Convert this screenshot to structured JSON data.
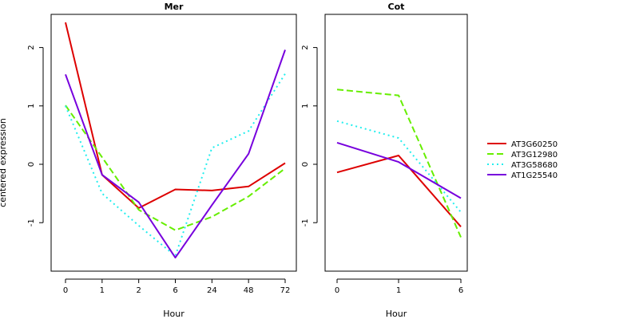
{
  "chart_data": {
    "type": "line",
    "ylabel": "centered expression",
    "ylim": [
      -1.75,
      2.5
    ],
    "yticks": [
      -1,
      0,
      1,
      2
    ],
    "grid": false,
    "legend_position": "right",
    "panels": [
      {
        "title": "Mer",
        "xlabel": "Hour",
        "categories": [
          "0",
          "1",
          "2",
          "6",
          "24",
          "48",
          "72"
        ],
        "series": [
          {
            "name": "AT3G60250",
            "color": "#dd0000",
            "dash": "solid",
            "values": [
              2.43,
              -0.18,
              -0.75,
              -0.43,
              -0.45,
              -0.38,
              0.02
            ]
          },
          {
            "name": "AT3G12980",
            "color": "#66ee00",
            "dash": "dashed",
            "values": [
              1.01,
              0.12,
              -0.78,
              -1.13,
              -0.9,
              -0.55,
              -0.07
            ]
          },
          {
            "name": "AT3G58680",
            "color": "#22eeee",
            "dash": "dotted",
            "values": [
              1.0,
              -0.5,
              -1.05,
              -1.57,
              0.28,
              0.57,
              1.55
            ]
          },
          {
            "name": "AT1G25540",
            "color": "#7700dd",
            "dash": "solid",
            "values": [
              1.54,
              -0.18,
              -0.65,
              -1.6,
              -0.7,
              0.18,
              1.96
            ]
          }
        ]
      },
      {
        "title": "Cot",
        "xlabel": "Hour",
        "categories": [
          "0",
          "1",
          "6"
        ],
        "series": [
          {
            "name": "AT3G60250",
            "color": "#dd0000",
            "dash": "solid",
            "values": [
              -0.14,
              0.15,
              -1.07
            ]
          },
          {
            "name": "AT3G12980",
            "color": "#66ee00",
            "dash": "dashed",
            "values": [
              1.28,
              1.18,
              -1.25
            ]
          },
          {
            "name": "AT3G58680",
            "color": "#22eeee",
            "dash": "dotted",
            "values": [
              0.74,
              0.45,
              -0.82
            ]
          },
          {
            "name": "AT1G25540",
            "color": "#7700dd",
            "dash": "solid",
            "values": [
              0.37,
              0.04,
              -0.58
            ]
          }
        ]
      }
    ],
    "legend": [
      {
        "name": "AT3G60250",
        "color": "#dd0000",
        "dash": "solid"
      },
      {
        "name": "AT3G12980",
        "color": "#66ee00",
        "dash": "dashed"
      },
      {
        "name": "AT3G58680",
        "color": "#22eeee",
        "dash": "dotted"
      },
      {
        "name": "AT1G25540",
        "color": "#7700dd",
        "dash": "solid"
      }
    ]
  }
}
